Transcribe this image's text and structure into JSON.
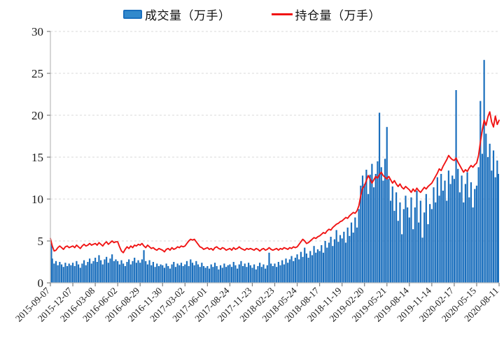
{
  "legend": {
    "volume_label": "成交量（万手）",
    "oi_label": "持仓量（万手）"
  },
  "colors": {
    "bar_fill": "#1b6fbd",
    "bar_legend_fill": "#3189cc",
    "bar_legend_border": "#1b6fbd",
    "line": "#f01414",
    "grid": "#d9d9d9",
    "axis": "#bfbfbf",
    "tick": "#7f7f7f",
    "text": "#1a1a1a"
  },
  "chart_data": {
    "type": "bar",
    "title": "",
    "xlabel": "",
    "ylabel": "",
    "grid": "horizontal-dashed",
    "legend_position": "top",
    "y_axis": {
      "min": 0,
      "max": 30,
      "tick_step": 5,
      "ticks": [
        0,
        5,
        10,
        15,
        20,
        25,
        30
      ]
    },
    "x_axis": {
      "label_rotation": -45,
      "tick_labels": [
        "2015-09-07",
        "2015-12-07",
        "2016-03-08",
        "2016-06-02",
        "2016-08-29",
        "2016-11-30",
        "2017-03-02",
        "2017-06-01",
        "2017-08-24",
        "2017-11-23",
        "2018-02-23",
        "2018-05-24",
        "2018-08-17",
        "2018-11-19",
        "2019-02-20",
        "2019-05-21",
        "2019-08-14",
        "2019-11-14",
        "2020-02-17",
        "2020-05-15",
        "2020-08-11"
      ]
    },
    "series": [
      {
        "name": "成交量（万手）",
        "type": "bar",
        "values": [
          4.7,
          2.9,
          2.3,
          2.6,
          2.1,
          2.5,
          2.2,
          1.9,
          2.4,
          2.0,
          2.3,
          2.1,
          2.4,
          2.0,
          2.6,
          2.2,
          1.8,
          2.3,
          2.7,
          2.1,
          2.5,
          2.9,
          2.3,
          2.6,
          3.0,
          2.5,
          3.3,
          2.7,
          2.2,
          2.8,
          3.1,
          2.4,
          2.9,
          3.4,
          2.6,
          2.8,
          2.6,
          2.2,
          2.7,
          2.3,
          2.0,
          2.5,
          2.8,
          2.2,
          2.6,
          3.0,
          2.4,
          2.7,
          2.4,
          2.8,
          3.9,
          2.6,
          2.2,
          2.7,
          2.1,
          2.5,
          1.9,
          2.3,
          2.0,
          2.2,
          2.1,
          1.8,
          2.3,
          2.0,
          1.7,
          2.2,
          2.5,
          1.9,
          2.3,
          2.1,
          2.4,
          2.0,
          2.2,
          2.6,
          2.0,
          2.8,
          2.4,
          2.1,
          2.6,
          2.2,
          1.9,
          2.4,
          2.0,
          1.8,
          2.0,
          1.7,
          2.2,
          1.9,
          2.4,
          2.0,
          1.6,
          2.1,
          1.8,
          2.3,
          1.9,
          2.1,
          2.2,
          1.9,
          2.5,
          2.1,
          1.7,
          2.2,
          2.6,
          2.0,
          2.3,
          1.9,
          2.4,
          2.1,
          1.8,
          2.2,
          1.6,
          2.0,
          2.4,
          1.9,
          2.2,
          1.7,
          2.1,
          3.6,
          2.3,
          2.0,
          2.3,
          1.9,
          2.5,
          2.1,
          2.7,
          2.2,
          2.9,
          2.4,
          2.8,
          3.2,
          2.6,
          3.0,
          3.4,
          2.8,
          3.7,
          3.1,
          4.2,
          3.5,
          3.0,
          3.8,
          3.3,
          4.4,
          3.6,
          4.0,
          3.8,
          4.5,
          3.6,
          5.0,
          4.2,
          4.8,
          5.5,
          4.4,
          5.2,
          6.3,
          4.9,
          5.7,
          5.3,
          6.1,
          4.8,
          6.6,
          5.6,
          7.2,
          6.0,
          7.8,
          6.6,
          8.8,
          11.6,
          12.8,
          11.8,
          13.5,
          10.6,
          12.9,
          14.2,
          11.4,
          13.0,
          14.5,
          20.3,
          13.8,
          12.2,
          14.8,
          18.6,
          12.4,
          9.8,
          11.5,
          8.6,
          10.8,
          7.4,
          9.6,
          5.8,
          8.8,
          10.4,
          9.0,
          7.8,
          10.2,
          6.4,
          9.0,
          11.0,
          7.2,
          9.8,
          5.4,
          8.4,
          10.6,
          7.0,
          9.4,
          8.8,
          11.4,
          9.6,
          12.6,
          10.4,
          13.0,
          11.0,
          12.2,
          9.8,
          13.4,
          11.8,
          12.8,
          12.4,
          23.0,
          13.6,
          10.8,
          12.8,
          9.6,
          11.8,
          13.2,
          10.2,
          12.0,
          9.0,
          11.2,
          11.6,
          13.8,
          21.7,
          15.4,
          26.6,
          17.8,
          15.0,
          16.6,
          13.4,
          15.8,
          12.6,
          14.6,
          13.0
        ]
      },
      {
        "name": "持仓量（万手）",
        "type": "line",
        "values": [
          5.3,
          4.4,
          3.8,
          3.9,
          4.2,
          4.4,
          4.2,
          4.0,
          4.3,
          4.4,
          4.2,
          4.3,
          4.4,
          4.2,
          4.5,
          4.3,
          4.1,
          4.4,
          4.6,
          4.4,
          4.5,
          4.7,
          4.5,
          4.6,
          4.7,
          4.5,
          4.8,
          4.6,
          4.4,
          4.7,
          4.9,
          4.6,
          4.8,
          5.0,
          4.8,
          4.9,
          4.9,
          4.3,
          3.8,
          3.6,
          4.0,
          4.3,
          4.1,
          4.4,
          4.2,
          4.5,
          4.4,
          4.6,
          4.5,
          4.7,
          4.4,
          4.2,
          4.5,
          4.3,
          4.1,
          4.2,
          4.0,
          3.9,
          4.1,
          4.0,
          3.9,
          3.7,
          4.0,
          4.1,
          3.9,
          4.2,
          4.0,
          4.1,
          4.3,
          4.2,
          4.4,
          4.3,
          4.4,
          4.7,
          5.0,
          5.2,
          5.1,
          5.2,
          4.9,
          4.6,
          4.3,
          4.2,
          4.0,
          4.1,
          4.2,
          4.0,
          4.1,
          3.9,
          4.2,
          4.3,
          4.1,
          4.0,
          4.2,
          4.1,
          3.9,
          4.0,
          4.1,
          3.9,
          4.2,
          4.0,
          4.1,
          4.3,
          4.1,
          4.0,
          3.9,
          4.1,
          4.0,
          4.1,
          4.0,
          3.9,
          4.1,
          4.0,
          3.8,
          4.0,
          4.1,
          3.9,
          4.0,
          4.2,
          4.0,
          3.9,
          4.0,
          4.1,
          3.9,
          4.1,
          4.0,
          4.2,
          4.1,
          4.0,
          4.2,
          4.1,
          4.3,
          4.2,
          4.3,
          4.6,
          4.9,
          5.2,
          5.0,
          4.7,
          4.8,
          5.0,
          5.2,
          5.4,
          5.3,
          5.5,
          5.6,
          5.8,
          6.0,
          5.9,
          6.2,
          6.4,
          6.3,
          6.6,
          6.8,
          7.0,
          7.1,
          7.3,
          7.4,
          7.6,
          7.8,
          7.7,
          8.0,
          8.2,
          8.4,
          8.3,
          8.6,
          9.2,
          10.4,
          11.3,
          11.6,
          12.2,
          12.8,
          12.4,
          11.9,
          12.3,
          12.7,
          12.5,
          12.9,
          13.2,
          12.8,
          12.6,
          12.4,
          12.7,
          12.3,
          11.9,
          12.2,
          11.8,
          11.5,
          11.8,
          11.4,
          11.2,
          11.5,
          11.3,
          11.1,
          10.8,
          11.2,
          10.9,
          11.3,
          11.0,
          10.8,
          11.1,
          11.4,
          11.2,
          11.5,
          11.7,
          11.9,
          12.3,
          12.7,
          13.1,
          13.6,
          13.4,
          13.9,
          14.3,
          14.7,
          15.2,
          14.9,
          14.7,
          14.6,
          14.9,
          14.4,
          14.0,
          13.6,
          13.2,
          13.5,
          13.3,
          13.7,
          14.0,
          13.8,
          14.1,
          14.3,
          15.2,
          16.8,
          18.2,
          19.4,
          18.8,
          19.8,
          20.4,
          19.2,
          18.6,
          19.9,
          18.9,
          19.4
        ]
      }
    ]
  }
}
